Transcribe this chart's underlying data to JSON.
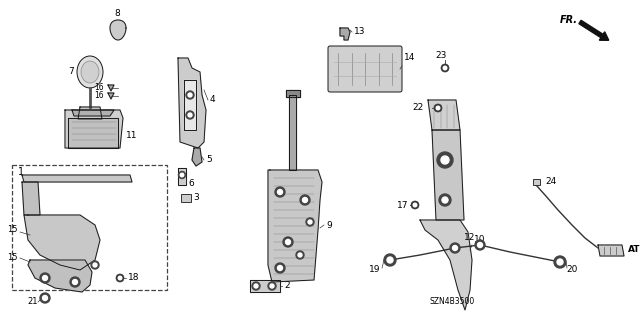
{
  "bg_color": "#ffffff",
  "diagram_code": "SZN4B3500",
  "fig_w": 6.4,
  "fig_h": 3.19,
  "dpi": 100,
  "lc": "#1a1a1a",
  "fc": "#d8d8d8",
  "lw": 0.7
}
